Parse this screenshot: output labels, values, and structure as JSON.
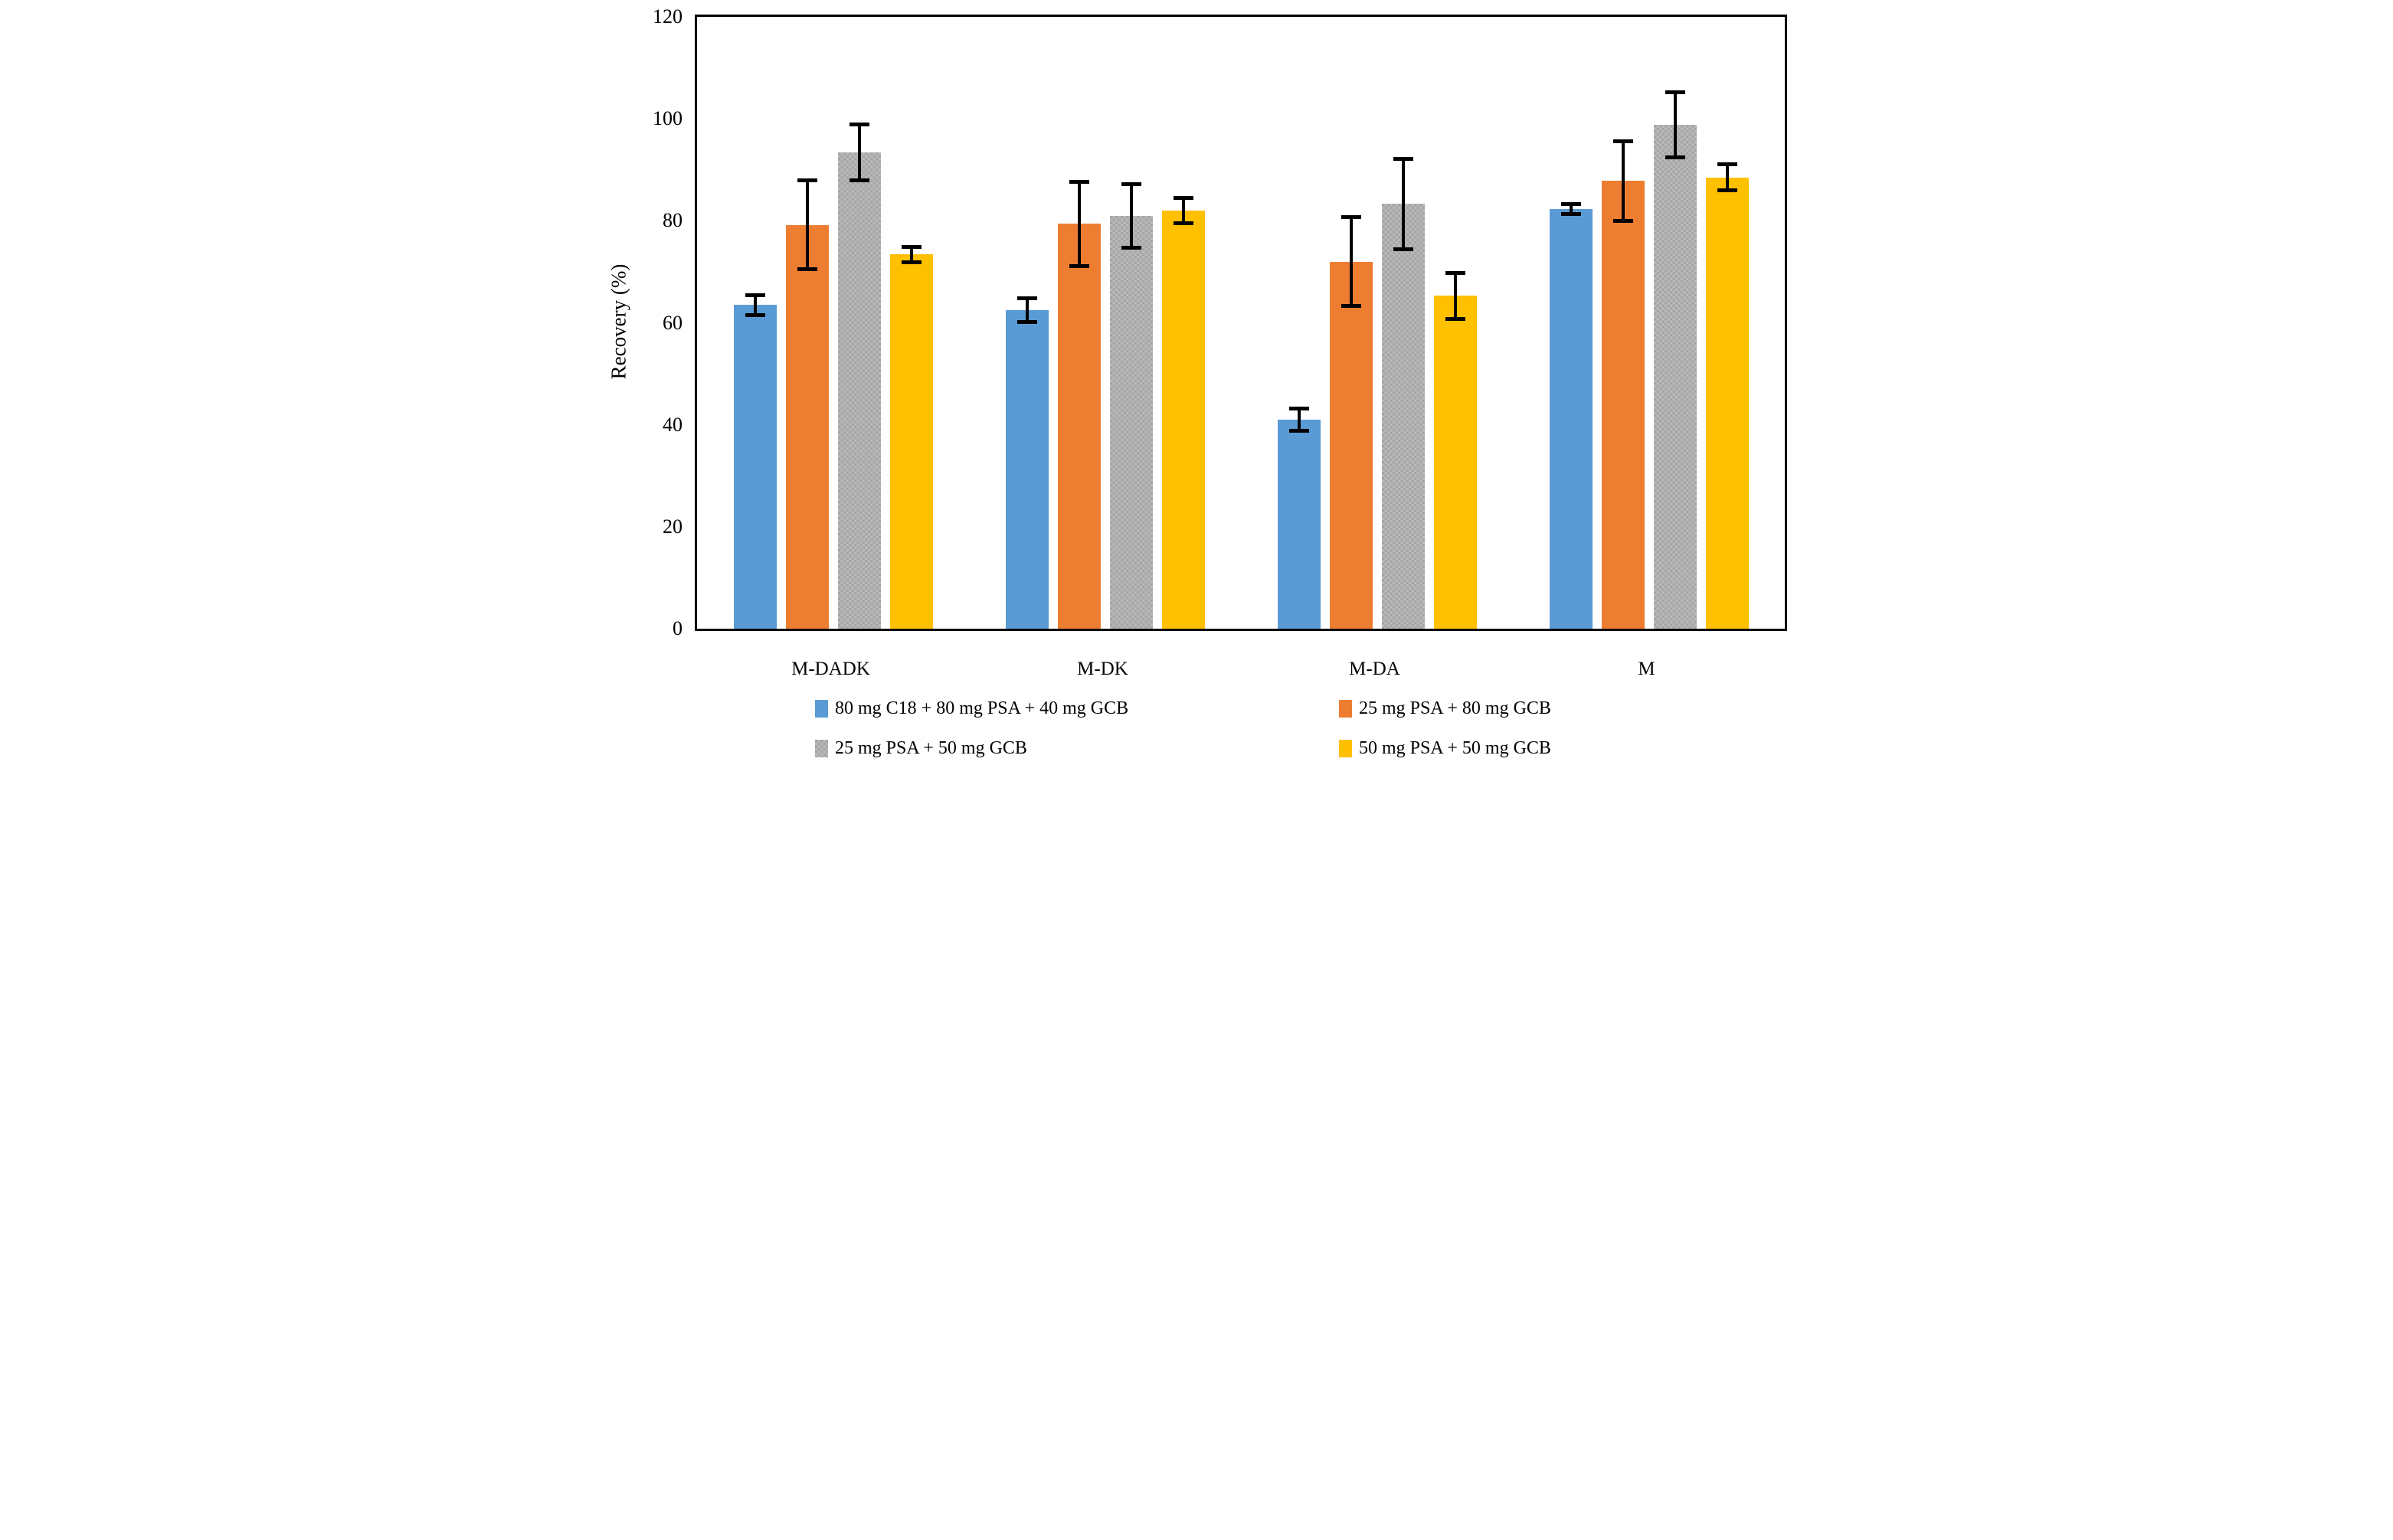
{
  "chart_data": {
    "type": "bar",
    "title": "",
    "xlabel": "",
    "ylabel": "Recovery (%)",
    "ylim": [
      0,
      120
    ],
    "yticks": [
      0,
      20,
      40,
      60,
      80,
      100,
      120
    ],
    "grid": false,
    "legend_position": "bottom",
    "plot_border_color": "#000000",
    "error_bar_color": "#000000",
    "categories": [
      "M-DADK",
      "M-DK",
      "M-DA",
      "M"
    ],
    "series": [
      {
        "name": "80 mg C18 + 80 mg PSA + 40 mg GCB",
        "color": "#5B9BD5",
        "fill": "solid",
        "values": [
          63.5,
          62.5,
          41.0,
          82.3
        ],
        "errors": [
          2.0,
          2.4,
          2.3,
          1.0
        ]
      },
      {
        "name": "25 mg PSA + 80 mg GCB",
        "color": "#ED7D31",
        "fill": "solid",
        "values": [
          79.2,
          79.4,
          72.0,
          87.8
        ],
        "errors": [
          8.8,
          8.3,
          8.8,
          7.9
        ]
      },
      {
        "name": "25 mg PSA + 50 mg GCB",
        "color": "#A6A6A6",
        "fill": "checker",
        "values": [
          93.4,
          81.0,
          83.3,
          98.8
        ],
        "errors": [
          5.6,
          6.3,
          8.9,
          6.5
        ]
      },
      {
        "name": "50 mg PSA + 50 mg GCB",
        "color": "#FFC000",
        "fill": "solid",
        "values": [
          73.4,
          82.0,
          65.3,
          88.5
        ],
        "errors": [
          1.6,
          2.5,
          4.6,
          2.6
        ]
      }
    ]
  }
}
